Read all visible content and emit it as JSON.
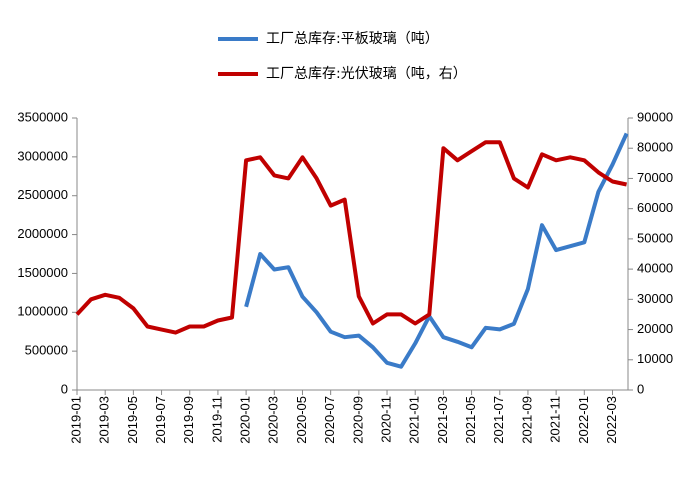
{
  "chart_data": {
    "type": "line",
    "x": [
      "2019-01",
      null,
      "2019-03",
      null,
      "2019-05",
      null,
      "2019-07",
      null,
      "2019-09",
      null,
      "2019-11",
      null,
      "2020-01",
      null,
      "2020-03",
      null,
      "2020-05",
      null,
      "2020-07",
      null,
      "2020-09",
      null,
      "2020-11",
      null,
      "2021-01",
      null,
      "2021-03",
      null,
      "2021-05",
      null,
      "2021-07",
      null,
      "2021-09",
      null,
      "2021-11",
      null,
      "2022-01",
      null,
      "2022-03",
      null
    ],
    "series": [
      {
        "name": "工厂总库存:平板玻璃（吨）",
        "color": "#3a7bc8",
        "axis": "y",
        "values": [
          null,
          null,
          null,
          null,
          null,
          null,
          null,
          null,
          null,
          null,
          null,
          null,
          1070000,
          1750000,
          1550000,
          1580000,
          1200000,
          1000000,
          750000,
          680000,
          700000,
          550000,
          350000,
          300000,
          600000,
          950000,
          680000,
          620000,
          550000,
          800000,
          780000,
          850000,
          1300000,
          2120000,
          1800000,
          1850000,
          1900000,
          2550000,
          2900000,
          3300000
        ]
      },
      {
        "name": "工厂总库存:光伏玻璃（吨，右）",
        "color": "#c00000",
        "axis": "y2",
        "values": [
          25000,
          30000,
          31500,
          30500,
          27000,
          21000,
          20000,
          19000,
          21000,
          21000,
          23000,
          24000,
          76000,
          77000,
          71000,
          70000,
          77000,
          70000,
          61000,
          63000,
          31000,
          22000,
          25000,
          25000,
          22000,
          25000,
          80000,
          76000,
          79000,
          82000,
          82000,
          70000,
          67000,
          78000,
          76000,
          77000,
          76000,
          72000,
          69000,
          68000
        ]
      }
    ],
    "ylim": [
      0,
      3500000
    ],
    "yticks": [
      0,
      500000,
      1000000,
      1500000,
      2000000,
      2500000,
      3000000,
      3500000
    ],
    "y2lim": [
      0,
      90000
    ],
    "y2ticks": [
      0,
      10000,
      20000,
      30000,
      40000,
      50000,
      60000,
      70000,
      80000,
      90000
    ],
    "grid": false
  }
}
